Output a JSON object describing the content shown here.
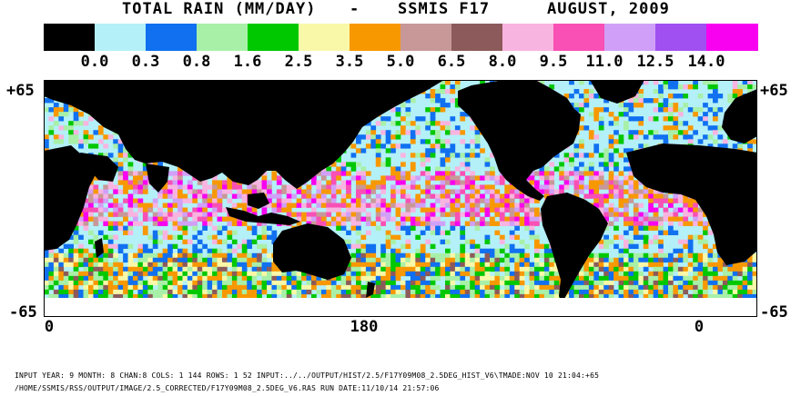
{
  "title": {
    "label": "TOTAL RAIN (MM/DAY)",
    "dash": "-",
    "sensor": "SSMIS F17",
    "period": "AUGUST, 2009"
  },
  "legend": {
    "colors": [
      "#000000",
      "#b4f0f8",
      "#1070f0",
      "#a8f0a8",
      "#00c800",
      "#f8f8a8",
      "#f89800",
      "#c89898",
      "#8c5a5a",
      "#f8b4e0",
      "#f850b4",
      "#d0a0f8",
      "#a050f0",
      "#f800f0"
    ],
    "tick_labels": [
      "0.0",
      "0.3",
      "0.8",
      "1.6",
      "2.5",
      "3.5",
      "5.0",
      "6.5",
      "8.0",
      "9.5",
      "11.0",
      "12.5",
      "14.0"
    ]
  },
  "map": {
    "lat_top": "+65",
    "lat_bottom": "-65",
    "lon_labels": [
      "0",
      "180",
      "0"
    ],
    "land_color": "#000000",
    "no_data_color": "#ffffff"
  },
  "footer": {
    "line1": "INPUT YEAR: 9 MONTH: 8 CHAN:8 COLS:   1 144 ROWS:   1 52 INPUT:../../OUTPUT/HIST/2.5/F17Y09M08_2.5DEG_HIST_V6\\TMADE:NOV 10 21:04:+65",
    "line2": "/HOME/SSMIS/RSS/OUTPUT/IMAGE/2.5_CORRECTED/F17Y09M08_2.5DEG_V6.RAS  RUN DATE:11/10/14 21:57:06"
  }
}
